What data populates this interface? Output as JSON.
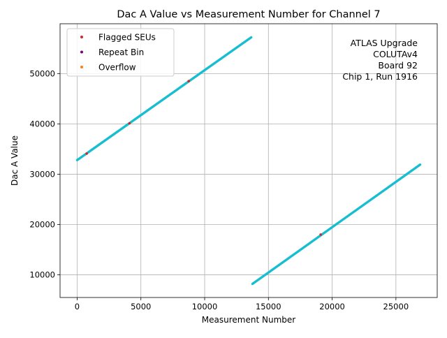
{
  "chart_data": {
    "type": "scatter",
    "title": "Dac A Value vs Measurement Number for Channel 7",
    "xlabel": "Measurement Number",
    "ylabel": "Dac A Value",
    "xlim": [
      -1340,
      28240
    ],
    "ylim": [
      5500,
      59900
    ],
    "xticks": [
      0,
      5000,
      10000,
      15000,
      20000,
      25000
    ],
    "xtick_labels": [
      "0",
      "5000",
      "10000",
      "15000",
      "20000",
      "25000"
    ],
    "yticks": [
      10000,
      20000,
      30000,
      40000,
      50000
    ],
    "ytick_labels": [
      "10000",
      "20000",
      "30000",
      "40000",
      "50000"
    ],
    "grid": true,
    "legend_position": "upper-left",
    "annotation_lines": [
      "ATLAS Upgrade",
      "COLUTAv4",
      "Board 92",
      "Chip 1, Run 1916"
    ],
    "main_series": {
      "color": "#17becf",
      "segments": [
        {
          "x": [
            0,
            13650
          ],
          "y": [
            32800,
            57200
          ]
        },
        {
          "x": [
            13750,
            26900
          ],
          "y": [
            8200,
            31900
          ]
        }
      ]
    },
    "series": [
      {
        "name": "Flagged SEUs",
        "color": "#d62728",
        "x": [
          750,
          4100,
          8750,
          19100
        ],
        "y": [
          34100,
          40100,
          48500,
          18000
        ]
      },
      {
        "name": "Repeat Bin",
        "color": "#800080",
        "x": [],
        "y": []
      },
      {
        "name": "Overflow",
        "color": "#ff7f0e",
        "x": [],
        "y": []
      }
    ]
  }
}
